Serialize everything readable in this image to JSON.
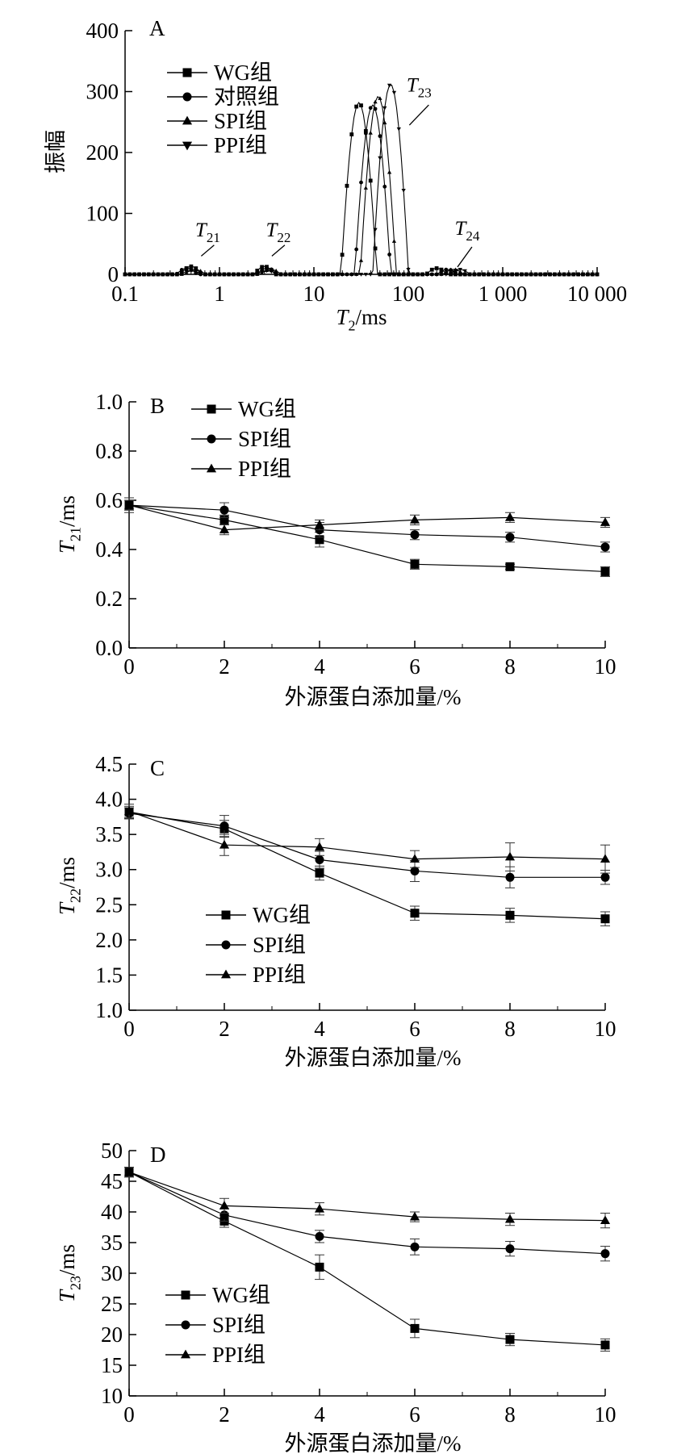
{
  "chart_data": [
    {
      "panel": "A",
      "type": "line",
      "xscale": "log",
      "xlim": [
        0.1,
        10000
      ],
      "ylim": [
        0,
        400
      ],
      "xticks": [
        0.1,
        1,
        10,
        100,
        1000,
        10000
      ],
      "xtick_labels": [
        "0.1",
        "1",
        "10",
        "100",
        "1 000",
        "10 000"
      ],
      "yticks": [
        0,
        100,
        200,
        300,
        400
      ],
      "xlabel_main": "T",
      "xlabel_sub": "2",
      "xlabel_unit": "/ms",
      "ylabel": "振幅",
      "legend": [
        "WG组",
        "对照组",
        "SPI组",
        "PPI组"
      ],
      "peak_labels": [
        {
          "main": "T",
          "sub": "21",
          "x": 0.75,
          "y": 62
        },
        {
          "main": "T",
          "sub": "22",
          "x": 4.2,
          "y": 62
        },
        {
          "main": "T",
          "sub": "23",
          "x": 130,
          "y": 300
        },
        {
          "main": "T",
          "sub": "24",
          "x": 420,
          "y": 65
        }
      ],
      "series": [
        {
          "name": "WG组",
          "marker": "square",
          "peaks": [
            {
              "center": 0.5,
              "height": 13,
              "width": 0.11
            },
            {
              "center": 3.0,
              "height": 13,
              "width": 0.11
            },
            {
              "center": 30,
              "height": 282,
              "width": 0.19
            },
            {
              "center": 200,
              "height": 10,
              "width": 0.11
            }
          ]
        },
        {
          "name": "对照组",
          "marker": "circle",
          "peaks": [
            {
              "center": 0.45,
              "height": 10,
              "width": 0.11
            },
            {
              "center": 3.2,
              "height": 10,
              "width": 0.11
            },
            {
              "center": 42,
              "height": 278,
              "width": 0.19
            },
            {
              "center": 260,
              "height": 8,
              "width": 0.11
            }
          ]
        },
        {
          "name": "SPI组",
          "marker": "triangle-up",
          "peaks": [
            {
              "center": 0.55,
              "height": 8,
              "width": 0.11
            },
            {
              "center": 3.5,
              "height": 8,
              "width": 0.11
            },
            {
              "center": 48,
              "height": 292,
              "width": 0.19
            },
            {
              "center": 300,
              "height": 8,
              "width": 0.11
            }
          ]
        },
        {
          "name": "PPI组",
          "marker": "triangle-down",
          "peaks": [
            {
              "center": 0.5,
              "height": 6,
              "width": 0.11
            },
            {
              "center": 3.2,
              "height": 6,
              "width": 0.11
            },
            {
              "center": 65,
              "height": 312,
              "width": 0.19
            },
            {
              "center": 350,
              "height": 8,
              "width": 0.11
            }
          ]
        }
      ]
    },
    {
      "panel": "B",
      "type": "line",
      "x": [
        0,
        2,
        4,
        6,
        8,
        10
      ],
      "xlim": [
        0,
        10
      ],
      "ylim": [
        0.0,
        1.0
      ],
      "xticks": [
        0,
        2,
        4,
        6,
        8,
        10
      ],
      "xtick_labels": [
        "0",
        "2",
        "4",
        "6",
        "8",
        "10"
      ],
      "yticks": [
        0.0,
        0.2,
        0.4,
        0.6,
        0.8,
        1.0
      ],
      "ytick_labels": [
        "0.0",
        "0.2",
        "0.4",
        "0.6",
        "0.8",
        "1.0"
      ],
      "xlabel": "外源蛋白添加量/%",
      "ylabel_main": "T",
      "ylabel_sub": "21",
      "ylabel_unit": "/ms",
      "series": [
        {
          "name": "WG组",
          "marker": "square",
          "values": [
            0.58,
            0.52,
            0.44,
            0.34,
            0.33,
            0.31
          ],
          "errors": [
            0.02,
            0.02,
            0.03,
            0.02,
            0.01,
            0.02
          ]
        },
        {
          "name": "SPI组",
          "marker": "circle",
          "values": [
            0.58,
            0.56,
            0.48,
            0.46,
            0.45,
            0.41
          ],
          "errors": [
            0.02,
            0.03,
            0.03,
            0.02,
            0.02,
            0.02
          ]
        },
        {
          "name": "PPI组",
          "marker": "triangle-up",
          "values": [
            0.58,
            0.48,
            0.5,
            0.52,
            0.53,
            0.51
          ],
          "errors": [
            0.03,
            0.02,
            0.02,
            0.02,
            0.02,
            0.02
          ]
        }
      ]
    },
    {
      "panel": "C",
      "type": "line",
      "x": [
        0,
        2,
        4,
        6,
        8,
        10
      ],
      "xlim": [
        0,
        10
      ],
      "ylim": [
        1.0,
        4.5
      ],
      "xticks": [
        0,
        2,
        4,
        6,
        8,
        10
      ],
      "xtick_labels": [
        "0",
        "2",
        "4",
        "6",
        "8",
        "10"
      ],
      "yticks": [
        1.0,
        1.5,
        2.0,
        2.5,
        3.0,
        3.5,
        4.0,
        4.5
      ],
      "ytick_labels": [
        "1.0",
        "1.5",
        "2.0",
        "2.5",
        "3.0",
        "3.5",
        "4.0",
        "4.5"
      ],
      "xlabel": "外源蛋白添加量/%",
      "ylabel_main": "T",
      "ylabel_sub": "22",
      "ylabel_unit": "/ms",
      "series": [
        {
          "name": "WG组",
          "marker": "square",
          "values": [
            3.82,
            3.58,
            2.95,
            2.38,
            2.35,
            2.3
          ],
          "errors": [
            0.08,
            0.12,
            0.1,
            0.1,
            0.1,
            0.1
          ]
        },
        {
          "name": "SPI组",
          "marker": "circle",
          "values": [
            3.8,
            3.62,
            3.14,
            2.98,
            2.89,
            2.89
          ],
          "errors": [
            0.08,
            0.15,
            0.12,
            0.15,
            0.15,
            0.1
          ]
        },
        {
          "name": "PPI组",
          "marker": "triangle-up",
          "values": [
            3.83,
            3.35,
            3.32,
            3.15,
            3.18,
            3.15
          ],
          "errors": [
            0.1,
            0.15,
            0.12,
            0.12,
            0.2,
            0.2
          ]
        }
      ]
    },
    {
      "panel": "D",
      "type": "line",
      "x": [
        0,
        2,
        4,
        6,
        8,
        10
      ],
      "xlim": [
        0,
        10
      ],
      "ylim": [
        10,
        50
      ],
      "xticks": [
        0,
        2,
        4,
        6,
        8,
        10
      ],
      "xtick_labels": [
        "0",
        "2",
        "4",
        "6",
        "8",
        "10"
      ],
      "yticks": [
        10,
        15,
        20,
        25,
        30,
        35,
        40,
        45,
        50
      ],
      "ytick_labels": [
        "10",
        "15",
        "20",
        "25",
        "30",
        "35",
        "40",
        "45",
        "50"
      ],
      "xlabel": "外源蛋白添加量/%",
      "ylabel_main": "T",
      "ylabel_sub": "23",
      "ylabel_unit": "/ms",
      "series": [
        {
          "name": "WG组",
          "marker": "square",
          "values": [
            46.5,
            38.5,
            31.0,
            21.0,
            19.2,
            18.3
          ],
          "errors": [
            0.8,
            1.0,
            2.0,
            1.5,
            1.0,
            1.0
          ]
        },
        {
          "name": "SPI组",
          "marker": "circle",
          "values": [
            46.5,
            39.5,
            36.0,
            34.3,
            34.0,
            33.2
          ],
          "errors": [
            0.8,
            1.0,
            1.0,
            1.3,
            1.2,
            1.2
          ]
        },
        {
          "name": "PPI组",
          "marker": "triangle-up",
          "values": [
            46.5,
            41.0,
            40.5,
            39.2,
            38.8,
            38.6
          ],
          "errors": [
            0.8,
            1.2,
            1.0,
            0.8,
            1.0,
            1.2
          ]
        }
      ]
    }
  ]
}
